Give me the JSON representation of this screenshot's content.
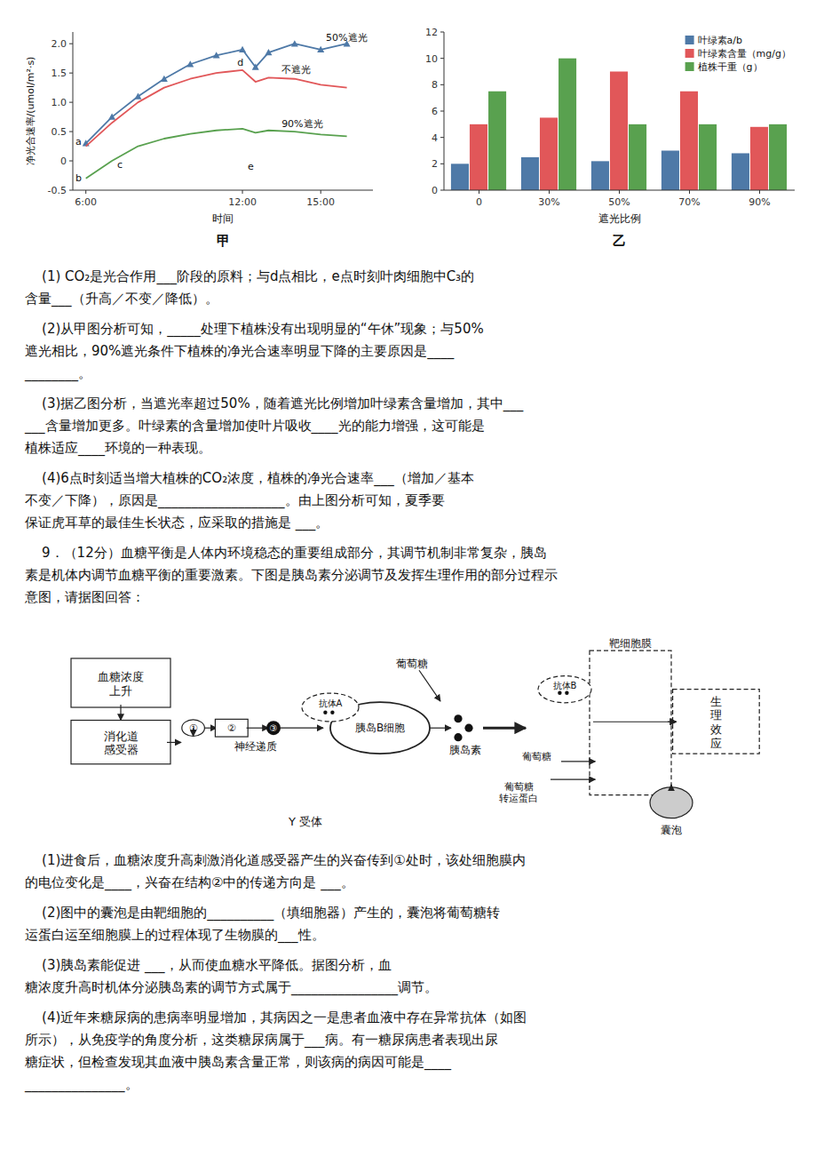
{
  "chart_data": [
    {
      "type": "line",
      "title": "甲",
      "xlabel": "时间",
      "ylabel": "净光合速率/(umol/m²·s)",
      "x": [
        6,
        7,
        8,
        9,
        10,
        11,
        12,
        12.5,
        13,
        14,
        15,
        16
      ],
      "series": [
        {
          "values": [
            0.3,
            0.75,
            1.1,
            1.4,
            1.65,
            1.8,
            1.9,
            1.6,
            1.85,
            2.0,
            1.9,
            2.0
          ],
          "marker": "triangle"
        },
        {
          "values": [
            0.25,
            0.65,
            1.0,
            1.25,
            1.4,
            1.5,
            1.55,
            1.35,
            1.42,
            1.4,
            1.3,
            1.25
          ]
        },
        {
          "values": [
            -0.3,
            0.0,
            0.25,
            0.38,
            0.46,
            0.52,
            0.55,
            0.48,
            0.52,
            0.5,
            0.45,
            0.42
          ]
        }
      ],
      "xlim": [
        5.5,
        17
      ],
      "xticks": [
        {
          "value": 6,
          "label": "6:00"
        },
        {
          "value": 12,
          "label": "12:00"
        },
        {
          "value": 15,
          "label": "15:00"
        }
      ],
      "ylim": [
        -0.5,
        2.2
      ],
      "yticks": [
        -0.5,
        0,
        0.5,
        {
          "value": 1.0,
          "label": "1.0"
        },
        1.5,
        {
          "value": 2.0,
          "label": "2.0"
        }
      ],
      "grid": false,
      "annotations": [
        {
          "text": "50%遮光",
          "x": 15.2,
          "y": 2.05
        },
        {
          "text": "不遮光",
          "x": 13.5,
          "y": 1.5
        },
        {
          "text": "90%遮光",
          "x": 13.5,
          "y": 0.58
        },
        {
          "text": "a",
          "x": 5.6,
          "y": 0.28
        },
        {
          "text": "b",
          "x": 5.6,
          "y": -0.35
        },
        {
          "text": "c",
          "x": 7.2,
          "y": -0.12
        },
        {
          "text": "d",
          "x": 11.8,
          "y": 1.62
        },
        {
          "text": "e",
          "x": 12.2,
          "y": -0.15
        }
      ]
    },
    {
      "type": "bar",
      "title": "乙",
      "xlabel": "遮光比例",
      "categories": [
        "0",
        "30%",
        "50%",
        "70%",
        "90%"
      ],
      "series": [
        {
          "name": "叶绿素a/b",
          "values": [
            2.0,
            2.5,
            2.2,
            3.0,
            2.8
          ]
        },
        {
          "name": "叶绿素含量（mg/g）",
          "values": [
            5.0,
            5.5,
            9.0,
            7.5,
            4.8
          ]
        },
        {
          "name": "植株干重（g）",
          "values": [
            7.5,
            10.0,
            5.0,
            5.0,
            5.0
          ]
        }
      ],
      "ylim": [
        0,
        12
      ],
      "yticks": [
        0,
        2,
        4,
        6,
        8,
        10,
        12
      ],
      "grid": false,
      "legend": "upper right"
    }
  ],
  "diagram": {
    "labels": [
      "血糖浓度\n上升",
      "消化道\n感受器",
      "①",
      "②",
      "③",
      "神经递质",
      "胰岛B细胞",
      "抗体A",
      "葡萄糖",
      "胰岛素",
      "靶细胞膜",
      "抗体B",
      "生\n理\n效\n应",
      "葡萄糖",
      "葡萄糖\n转运蛋白",
      "囊泡",
      "Y 受体"
    ]
  },
  "text_blocks": [
    [
      "    (1) CO₂是光合作用___阶段的原料；与d点相比，e点时刻叶肉细胞中C₃的",
      "含量___（升高／不变／降低）。"
    ],
    [
      "    (2)从甲图分析可知，_____处理下植株没有出现明显的“午休”现象；与50%",
      "遮光相比，90%遮光条件下植株的净光合速率明显下降的主要原因是____",
      "________。"
    ],
    [
      "    (3)据乙图分析，当遮光率超过50%，随着遮光比例增加叶绿素含量增加，其中___",
      "___含量增加更多。叶绿素的含量增加使叶片吸收____光的能力增强，这可能是",
      "植株适应____环境的一种表现。"
    ],
    [
      "    (4)6点时刻适当增大植株的CO₂浓度，植株的净光合速率___（增加／基本",
      "不变／下降），原因是___________________。由上图分析可知，夏季要",
      "保证虎耳草的最佳生长状态，应采取的措施是 ___。"
    ],
    [
      "    9．（12分）血糖平衡是人体内环境稳态的重要组成部分，其调节机制非常复杂，胰岛",
      "素是机体内调节血糖平衡的重要激素。下图是胰岛素分泌调节及发挥生理作用的部分过程示",
      "意图，请据图回答："
    ],
    [
      "    (1)进食后，血糖浓度升高刺激消化道感受器产生的兴奋传到①处时，该处细胞膜内",
      "的电位变化是____，兴奋在结构②中的传递方向是 ___。"
    ],
    [
      "    (2)图中的囊泡是由靶细胞的__________（填细胞器）产生的，囊泡将葡萄糖转",
      "运蛋白运至细胞膜上的过程体现了生物膜的___性。"
    ],
    [
      "    (3)胰岛素能促进 ___，从而使血糖水平降低。据图分析，血",
      "糖浓度升高时机体分泌胰岛素的调节方式属于________________调节。"
    ],
    [
      "    (4)近年来糖尿病的患病率明显增加，其病因之一是患者血液中存在异常抗体（如图",
      "所示），从免疫学的角度分析，这类糖尿病属于___病。有一糖尿病患者表现出尿",
      "糖症状，但检查发现其血液中胰岛素含量正常，则该病的病因可能是____",
      "_______________。"
    ]
  ]
}
